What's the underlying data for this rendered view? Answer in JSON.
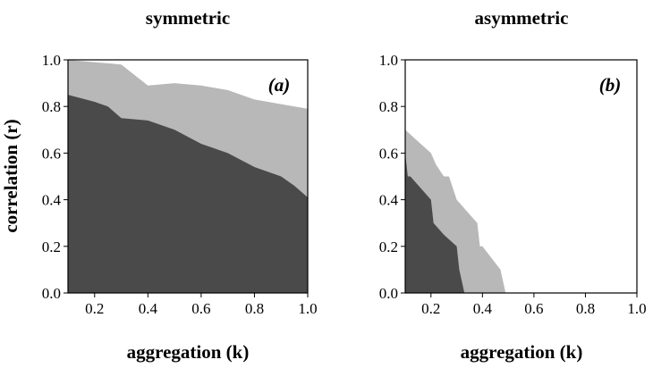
{
  "chart_data": [
    {
      "type": "area",
      "title": "symmetric",
      "panel_label": "(a)",
      "xlabel": "aggregation (k)",
      "ylabel": "correlation (r)",
      "xlim": [
        0.1,
        1.0
      ],
      "ylim": [
        0.0,
        1.0
      ],
      "xticks": [
        "0.2",
        "0.4",
        "0.6",
        "0.8",
        "1.0"
      ],
      "yticks": [
        "0.0",
        "0.2",
        "0.4",
        "0.6",
        "0.8",
        "1.0"
      ],
      "grid": false,
      "colors": {
        "light": "#b8b8b8",
        "dark": "#4a4a4a"
      },
      "series": [
        {
          "x": [
            0.1,
            0.2,
            0.3,
            0.4,
            0.5,
            0.6,
            0.7,
            0.8,
            0.9,
            1.0
          ],
          "y": [
            1.0,
            0.99,
            0.98,
            0.89,
            0.9,
            0.89,
            0.87,
            0.83,
            0.81,
            0.79
          ]
        },
        {
          "x": [
            0.1,
            0.2,
            0.25,
            0.28,
            0.3,
            0.4,
            0.5,
            0.6,
            0.7,
            0.8,
            0.9,
            0.95,
            1.0
          ],
          "y": [
            0.85,
            0.82,
            0.8,
            0.77,
            0.75,
            0.74,
            0.7,
            0.64,
            0.6,
            0.54,
            0.5,
            0.46,
            0.41
          ]
        }
      ]
    },
    {
      "type": "area",
      "title": "asymmetric",
      "panel_label": "(b)",
      "xlabel": "aggregation (k)",
      "ylabel": "",
      "xlim": [
        0.1,
        1.0
      ],
      "ylim": [
        0.0,
        1.0
      ],
      "xticks": [
        "0.2",
        "0.4",
        "0.6",
        "0.8",
        "1.0"
      ],
      "yticks": [
        "0.0",
        "0.2",
        "0.4",
        "0.6",
        "0.8",
        "1.0"
      ],
      "grid": false,
      "colors": {
        "light": "#b8b8b8",
        "dark": "#4a4a4a"
      },
      "series": [
        {
          "x": [
            0.1,
            0.15,
            0.2,
            0.22,
            0.25,
            0.27,
            0.3,
            0.38,
            0.39,
            0.4,
            0.47,
            0.49
          ],
          "y": [
            0.7,
            0.65,
            0.6,
            0.55,
            0.5,
            0.5,
            0.4,
            0.3,
            0.2,
            0.2,
            0.1,
            0.0
          ]
        },
        {
          "x": [
            0.1,
            0.11,
            0.12,
            0.2,
            0.21,
            0.25,
            0.3,
            0.31,
            0.33
          ],
          "y": [
            0.6,
            0.5,
            0.5,
            0.4,
            0.3,
            0.25,
            0.2,
            0.1,
            0.0
          ]
        }
      ]
    }
  ]
}
